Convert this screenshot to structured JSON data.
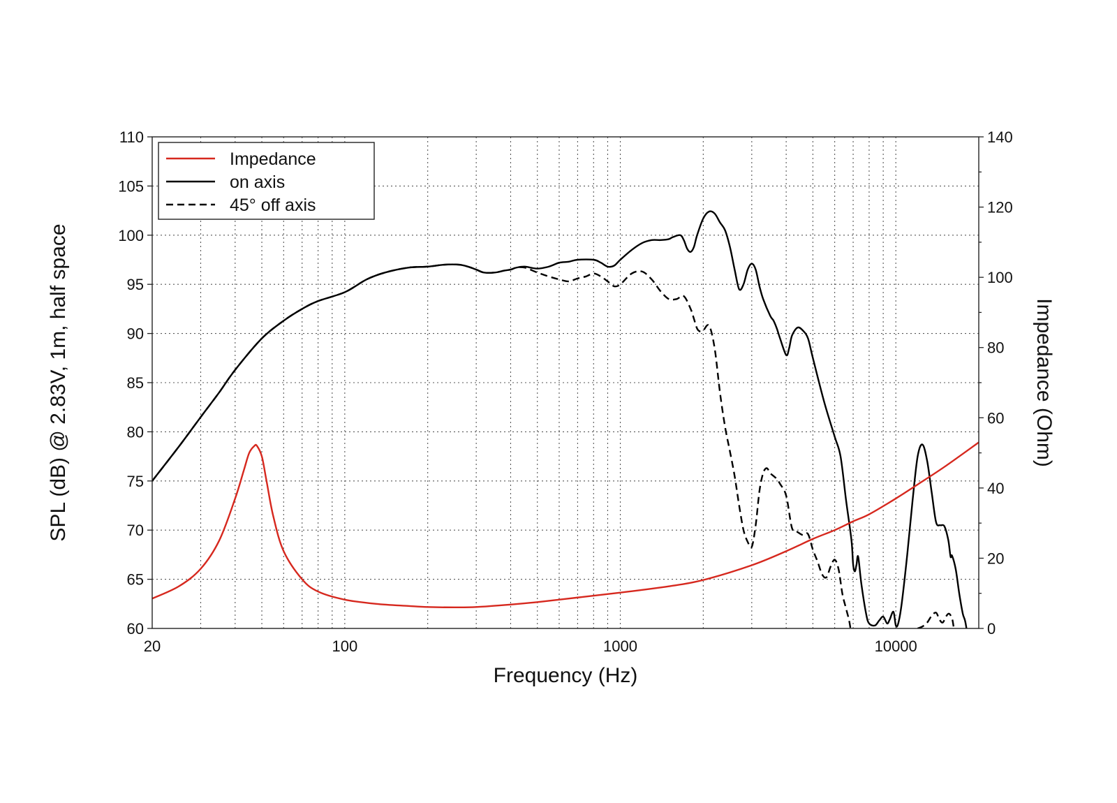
{
  "chart_data": {
    "type": "line",
    "xlabel": "Frequency (Hz)",
    "ylabel": "SPL (dB) @ 2.83V, 1m, half space",
    "y2label": "Impedance (Ohm)",
    "xscale": "log",
    "xlim": [
      20,
      20000
    ],
    "ylim": [
      60,
      110
    ],
    "y2lim": [
      0,
      140
    ],
    "x_tick_labels": [
      "20",
      "100",
      "1000",
      "10000"
    ],
    "x_ticks": [
      20,
      100,
      1000,
      10000
    ],
    "y_tick_labels": [
      "110",
      "105",
      "100",
      "95",
      "90",
      "85",
      "80",
      "75",
      "70",
      "65",
      "60"
    ],
    "y_ticks": [
      110,
      105,
      100,
      95,
      90,
      85,
      80,
      75,
      70,
      65,
      60
    ],
    "y2_tick_labels": [
      "140",
      "120",
      "100",
      "80",
      "60",
      "40",
      "20",
      "0"
    ],
    "y2_ticks": [
      140,
      120,
      100,
      80,
      60,
      40,
      20,
      0
    ],
    "grid": true,
    "legend_position": "top-left",
    "colors": {
      "impedance": "#d6281e",
      "on_axis": "#000000",
      "off_axis": "#000000"
    },
    "series": [
      {
        "key": "impedance",
        "name": "Impedance",
        "axis": "right",
        "style": "solid",
        "x": [
          20,
          25,
          30,
          35,
          40,
          43,
          45,
          47,
          48,
          50,
          52,
          55,
          60,
          70,
          80,
          100,
          130,
          170,
          200,
          250,
          300,
          400,
          500,
          700,
          1000,
          1500,
          2000,
          3000,
          4000,
          5000,
          6000,
          7000,
          8000,
          10000,
          12000,
          15000,
          20000
        ],
        "values": [
          8.5,
          12,
          17,
          25,
          37,
          45,
          50,
          52,
          52,
          49,
          42,
          32,
          22,
          14,
          10.5,
          8.2,
          7,
          6.4,
          6.1,
          6,
          6.1,
          6.8,
          7.5,
          8.8,
          10.2,
          12,
          13.8,
          18,
          22,
          25.5,
          28,
          30.5,
          32.5,
          37,
          41,
          46,
          53
        ]
      },
      {
        "key": "on_axis",
        "name": "on axis",
        "axis": "left",
        "style": "solid",
        "x": [
          20,
          25,
          30,
          35,
          40,
          50,
          60,
          70,
          80,
          100,
          120,
          140,
          170,
          200,
          230,
          260,
          280,
          300,
          320,
          350,
          380,
          400,
          420,
          450,
          500,
          550,
          600,
          650,
          700,
          800,
          850,
          900,
          950,
          1000,
          1100,
          1200,
          1300,
          1400,
          1500,
          1550,
          1650,
          1700,
          1750,
          1800,
          1850,
          1900,
          2000,
          2100,
          2200,
          2300,
          2400,
          2500,
          2600,
          2700,
          2800,
          2900,
          3000,
          3100,
          3200,
          3300,
          3500,
          3600,
          3700,
          3800,
          4000,
          4100,
          4200,
          4400,
          4600,
          4800,
          5000,
          5500,
          6000,
          6300,
          6600,
          6900,
          7000,
          7100,
          7200,
          7300,
          7500,
          7800,
          8000,
          8400,
          8700,
          9000,
          9300,
          9500,
          9800,
          10000,
          10200,
          10500,
          11000,
          11500,
          12000,
          12500,
          13000,
          13500,
          14000,
          14500,
          15000,
          15500,
          15800,
          16000,
          16500,
          17000,
          17500,
          18000,
          19000
        ],
        "values": [
          75,
          78.5,
          81.5,
          84,
          86.3,
          89.5,
          91.3,
          92.5,
          93.3,
          94.2,
          95.5,
          96.2,
          96.7,
          96.8,
          97,
          97,
          96.8,
          96.5,
          96.2,
          96.2,
          96.4,
          96.5,
          96.7,
          96.8,
          96.6,
          96.8,
          97.2,
          97.3,
          97.5,
          97.5,
          97.2,
          96.8,
          96.9,
          97.5,
          98.5,
          99.2,
          99.5,
          99.5,
          99.6,
          99.8,
          100,
          99.5,
          98.6,
          98.3,
          98.8,
          100,
          101.7,
          102.4,
          102.2,
          101.3,
          100.5,
          98.8,
          96.5,
          94.5,
          95,
          96.5,
          97.1,
          96.5,
          94.8,
          93.5,
          91.8,
          91.3,
          90.5,
          89.5,
          87.8,
          88.5,
          89.8,
          90.6,
          90.3,
          89.5,
          87.5,
          83,
          79.5,
          77.5,
          73,
          69,
          66.5,
          65.8,
          66.5,
          67.3,
          64.5,
          61.5,
          60.5,
          60.3,
          60.8,
          61.2,
          60.5,
          60.9,
          61.7,
          60.3,
          60.5,
          62.5,
          67.5,
          73,
          77.5,
          78.7,
          77,
          73.8,
          70.8,
          70.5,
          70.4,
          69,
          67.3,
          67.4,
          66,
          63.5,
          61.5,
          60.2,
          55
        ]
      },
      {
        "key": "off_axis",
        "name": "45° off axis",
        "axis": "left",
        "style": "dashed",
        "x": [
          20,
          25,
          30,
          35,
          40,
          50,
          60,
          70,
          80,
          100,
          120,
          140,
          170,
          200,
          230,
          260,
          280,
          300,
          320,
          350,
          380,
          400,
          420,
          450,
          500,
          550,
          600,
          650,
          700,
          750,
          800,
          850,
          900,
          950,
          1000,
          1100,
          1200,
          1300,
          1400,
          1500,
          1600,
          1700,
          1800,
          1850,
          1900,
          1950,
          2000,
          2100,
          2200,
          2300,
          2400,
          2500,
          2600,
          2700,
          2800,
          2900,
          3000,
          3100,
          3200,
          3300,
          3400,
          3500,
          3600,
          3700,
          3800,
          4000,
          4200,
          4400,
          4600,
          4800,
          5000,
          5200,
          5400,
          5600,
          5800,
          6000,
          6200,
          6400,
          6600,
          6800,
          7000
        ],
        "values": [
          75,
          78.5,
          81.5,
          84,
          86.3,
          89.5,
          91.3,
          92.5,
          93.3,
          94.2,
          95.5,
          96.2,
          96.7,
          96.8,
          97,
          97,
          96.8,
          96.5,
          96.2,
          96.2,
          96.4,
          96.5,
          96.7,
          96.7,
          96.2,
          95.8,
          95.5,
          95.3,
          95.6,
          95.8,
          96.1,
          95.8,
          95.3,
          94.8,
          95,
          96.1,
          96.3,
          95.5,
          94.3,
          93.5,
          93.5,
          93.8,
          92.5,
          91.5,
          90.5,
          90.2,
          90.3,
          90.8,
          88.5,
          84,
          80.5,
          78,
          75.5,
          72.5,
          70,
          68.8,
          68.3,
          70.5,
          74,
          75.8,
          76.3,
          75.8,
          75.5,
          75.2,
          74.7,
          73.5,
          70.2,
          69.8,
          69.5,
          69.6,
          68,
          66.8,
          65.5,
          65.2,
          66.3,
          67,
          66,
          63.5,
          62,
          60.5,
          58
        ]
      },
      {
        "key": "off_axis_hf",
        "name": "",
        "axis": "left",
        "style": "dashed",
        "x": [
          12000,
          12500,
          13000,
          13500,
          14000,
          14400,
          14800,
          15200,
          15600,
          16000,
          16200
        ],
        "values": [
          60,
          60.2,
          60.6,
          61.3,
          61.6,
          60.9,
          60.6,
          61.2,
          61.5,
          61,
          60.2
        ]
      }
    ],
    "legend_entries": [
      "Impedance",
      "on axis",
      "45° off axis"
    ]
  }
}
